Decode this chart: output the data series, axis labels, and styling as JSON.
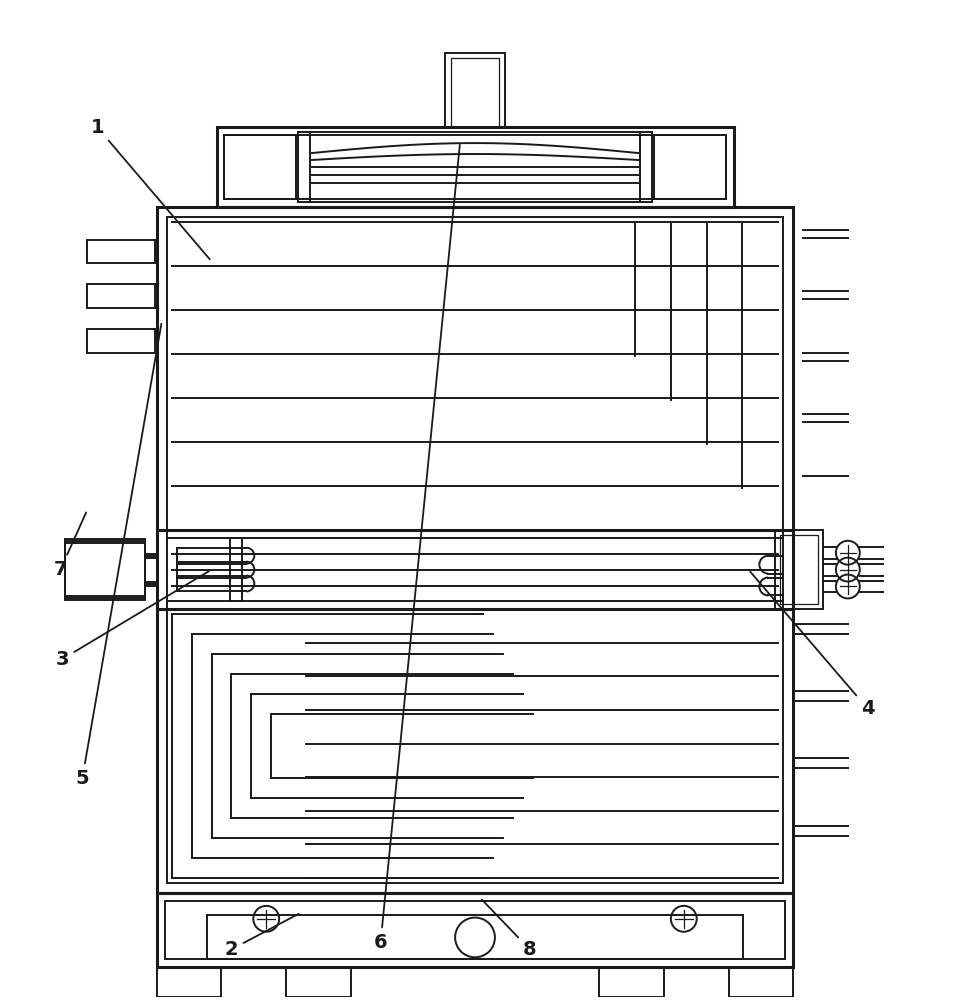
{
  "bg_color": "#ffffff",
  "lc": "#1a1a1a",
  "lw": 1.4,
  "lw_thick": 2.2,
  "lw_thin": 0.9,
  "figsize": [
    9.56,
    10.0
  ],
  "dpi": 100
}
